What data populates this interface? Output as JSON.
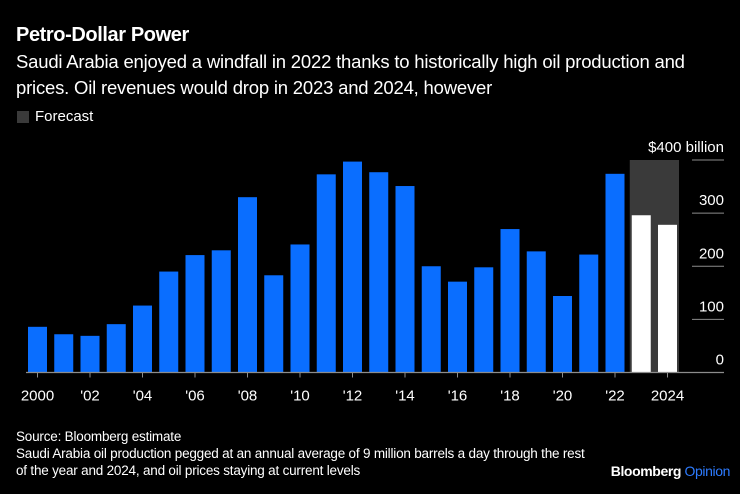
{
  "header": {
    "title": "Petro-Dollar Power",
    "subtitle": "Saudi Arabia enjoyed a windfall in 2022 thanks to historically high oil production and prices. Oil revenues would drop in 2023 and 2024, however"
  },
  "legend": {
    "forecast_label": "Forecast"
  },
  "footer": {
    "source": "Source: Bloomberg estimate",
    "note": "Saudi Arabia oil production pegged at an annual average of 9 million barrels a day through the rest of the year and 2024, and oil prices staying at current levels",
    "brand_main": "Bloomberg",
    "brand_accent": "Opinion"
  },
  "colors": {
    "actual": "#0a6eff",
    "forecast": "#ffffff",
    "forecast_band": "#3a3a3a",
    "grid": "#8c8c8c",
    "background": "#000000"
  },
  "chart_data": {
    "type": "bar",
    "title": "Petro-Dollar Power",
    "xlabel": "",
    "ylabel": "",
    "y_unit_label": "$400 billion",
    "ylim": [
      0,
      400
    ],
    "yticks": [
      0,
      100,
      200,
      300,
      400
    ],
    "ytick_labels": [
      "0",
      "100",
      "200",
      "300",
      "$400 billion"
    ],
    "grid": true,
    "legend_position": "top-left",
    "categories": [
      "2000",
      "2001",
      "2002",
      "2003",
      "2004",
      "2005",
      "2006",
      "2007",
      "2008",
      "2009",
      "2010",
      "2011",
      "2012",
      "2013",
      "2014",
      "2015",
      "2016",
      "2017",
      "2018",
      "2019",
      "2020",
      "2021",
      "2022",
      "2023",
      "2024"
    ],
    "xtick_labels": [
      {
        "year": "2000",
        "label": "2000"
      },
      {
        "year": "2002",
        "label": "'02"
      },
      {
        "year": "2004",
        "label": "'04"
      },
      {
        "year": "2006",
        "label": "'06"
      },
      {
        "year": "2008",
        "label": "'08"
      },
      {
        "year": "2010",
        "label": "'10"
      },
      {
        "year": "2012",
        "label": "'12"
      },
      {
        "year": "2014",
        "label": "'14"
      },
      {
        "year": "2016",
        "label": "'16"
      },
      {
        "year": "2018",
        "label": "'18"
      },
      {
        "year": "2020",
        "label": "'20"
      },
      {
        "year": "2022",
        "label": "'22"
      },
      {
        "year": "2024",
        "label": "2024"
      }
    ],
    "series": [
      {
        "name": "Oil revenue",
        "values": [
          86,
          72,
          69,
          91,
          126,
          190,
          221,
          230,
          330,
          183,
          241,
          373,
          397,
          377,
          351,
          200,
          171,
          198,
          270,
          228,
          144,
          222,
          374,
          296,
          278
        ],
        "forecast": [
          false,
          false,
          false,
          false,
          false,
          false,
          false,
          false,
          false,
          false,
          false,
          false,
          false,
          false,
          false,
          false,
          false,
          false,
          false,
          false,
          false,
          false,
          false,
          true,
          true
        ]
      }
    ],
    "forecast_band": {
      "from": "2023",
      "to": "2024",
      "label": "Forecast"
    }
  }
}
